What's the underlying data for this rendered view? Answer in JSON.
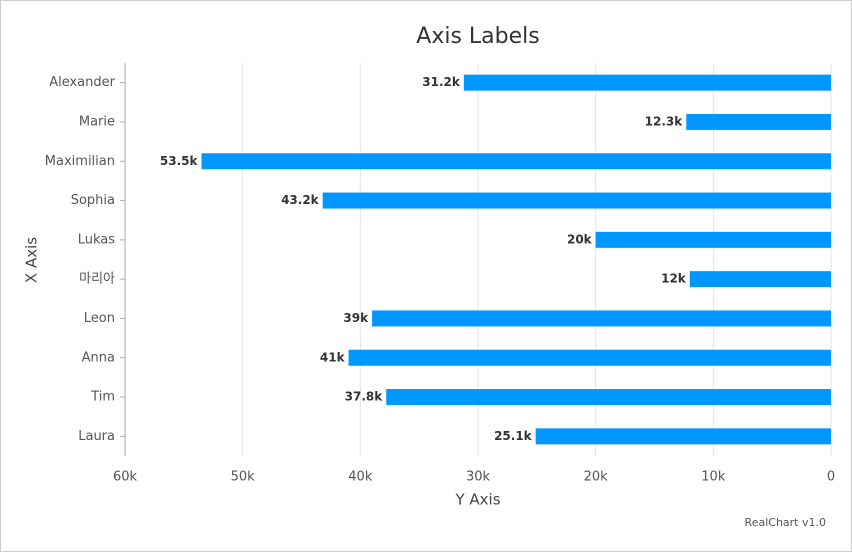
{
  "chart_data": {
    "type": "bar",
    "orientation": "horizontal",
    "title": "Axis Labels",
    "x_label": "Y Axis",
    "y_label": "X Axis",
    "credits": "RealChart v1.0",
    "categories": [
      "Alexander",
      "Marie",
      "Maximilian",
      "Sophia",
      "Lukas",
      "마리아",
      "Leon",
      "Anna",
      "Tim",
      "Laura"
    ],
    "values": [
      31200,
      12300,
      53500,
      43200,
      20000,
      12000,
      39000,
      41000,
      37800,
      25100
    ],
    "value_labels": [
      "31.2k",
      "12.3k",
      "53.5k",
      "43.2k",
      "20k",
      "12k",
      "39k",
      "41k",
      "37.8k",
      "25.1k"
    ],
    "color": "#0098ff",
    "xlim": [
      60000,
      0
    ],
    "xticks": [
      {
        "value": 60000,
        "label": "60k"
      },
      {
        "value": 50000,
        "label": "50k"
      },
      {
        "value": 40000,
        "label": "40k"
      },
      {
        "value": 30000,
        "label": "30k"
      },
      {
        "value": 20000,
        "label": "20k"
      },
      {
        "value": 10000,
        "label": "10k"
      },
      0
    ],
    "grid": true
  }
}
